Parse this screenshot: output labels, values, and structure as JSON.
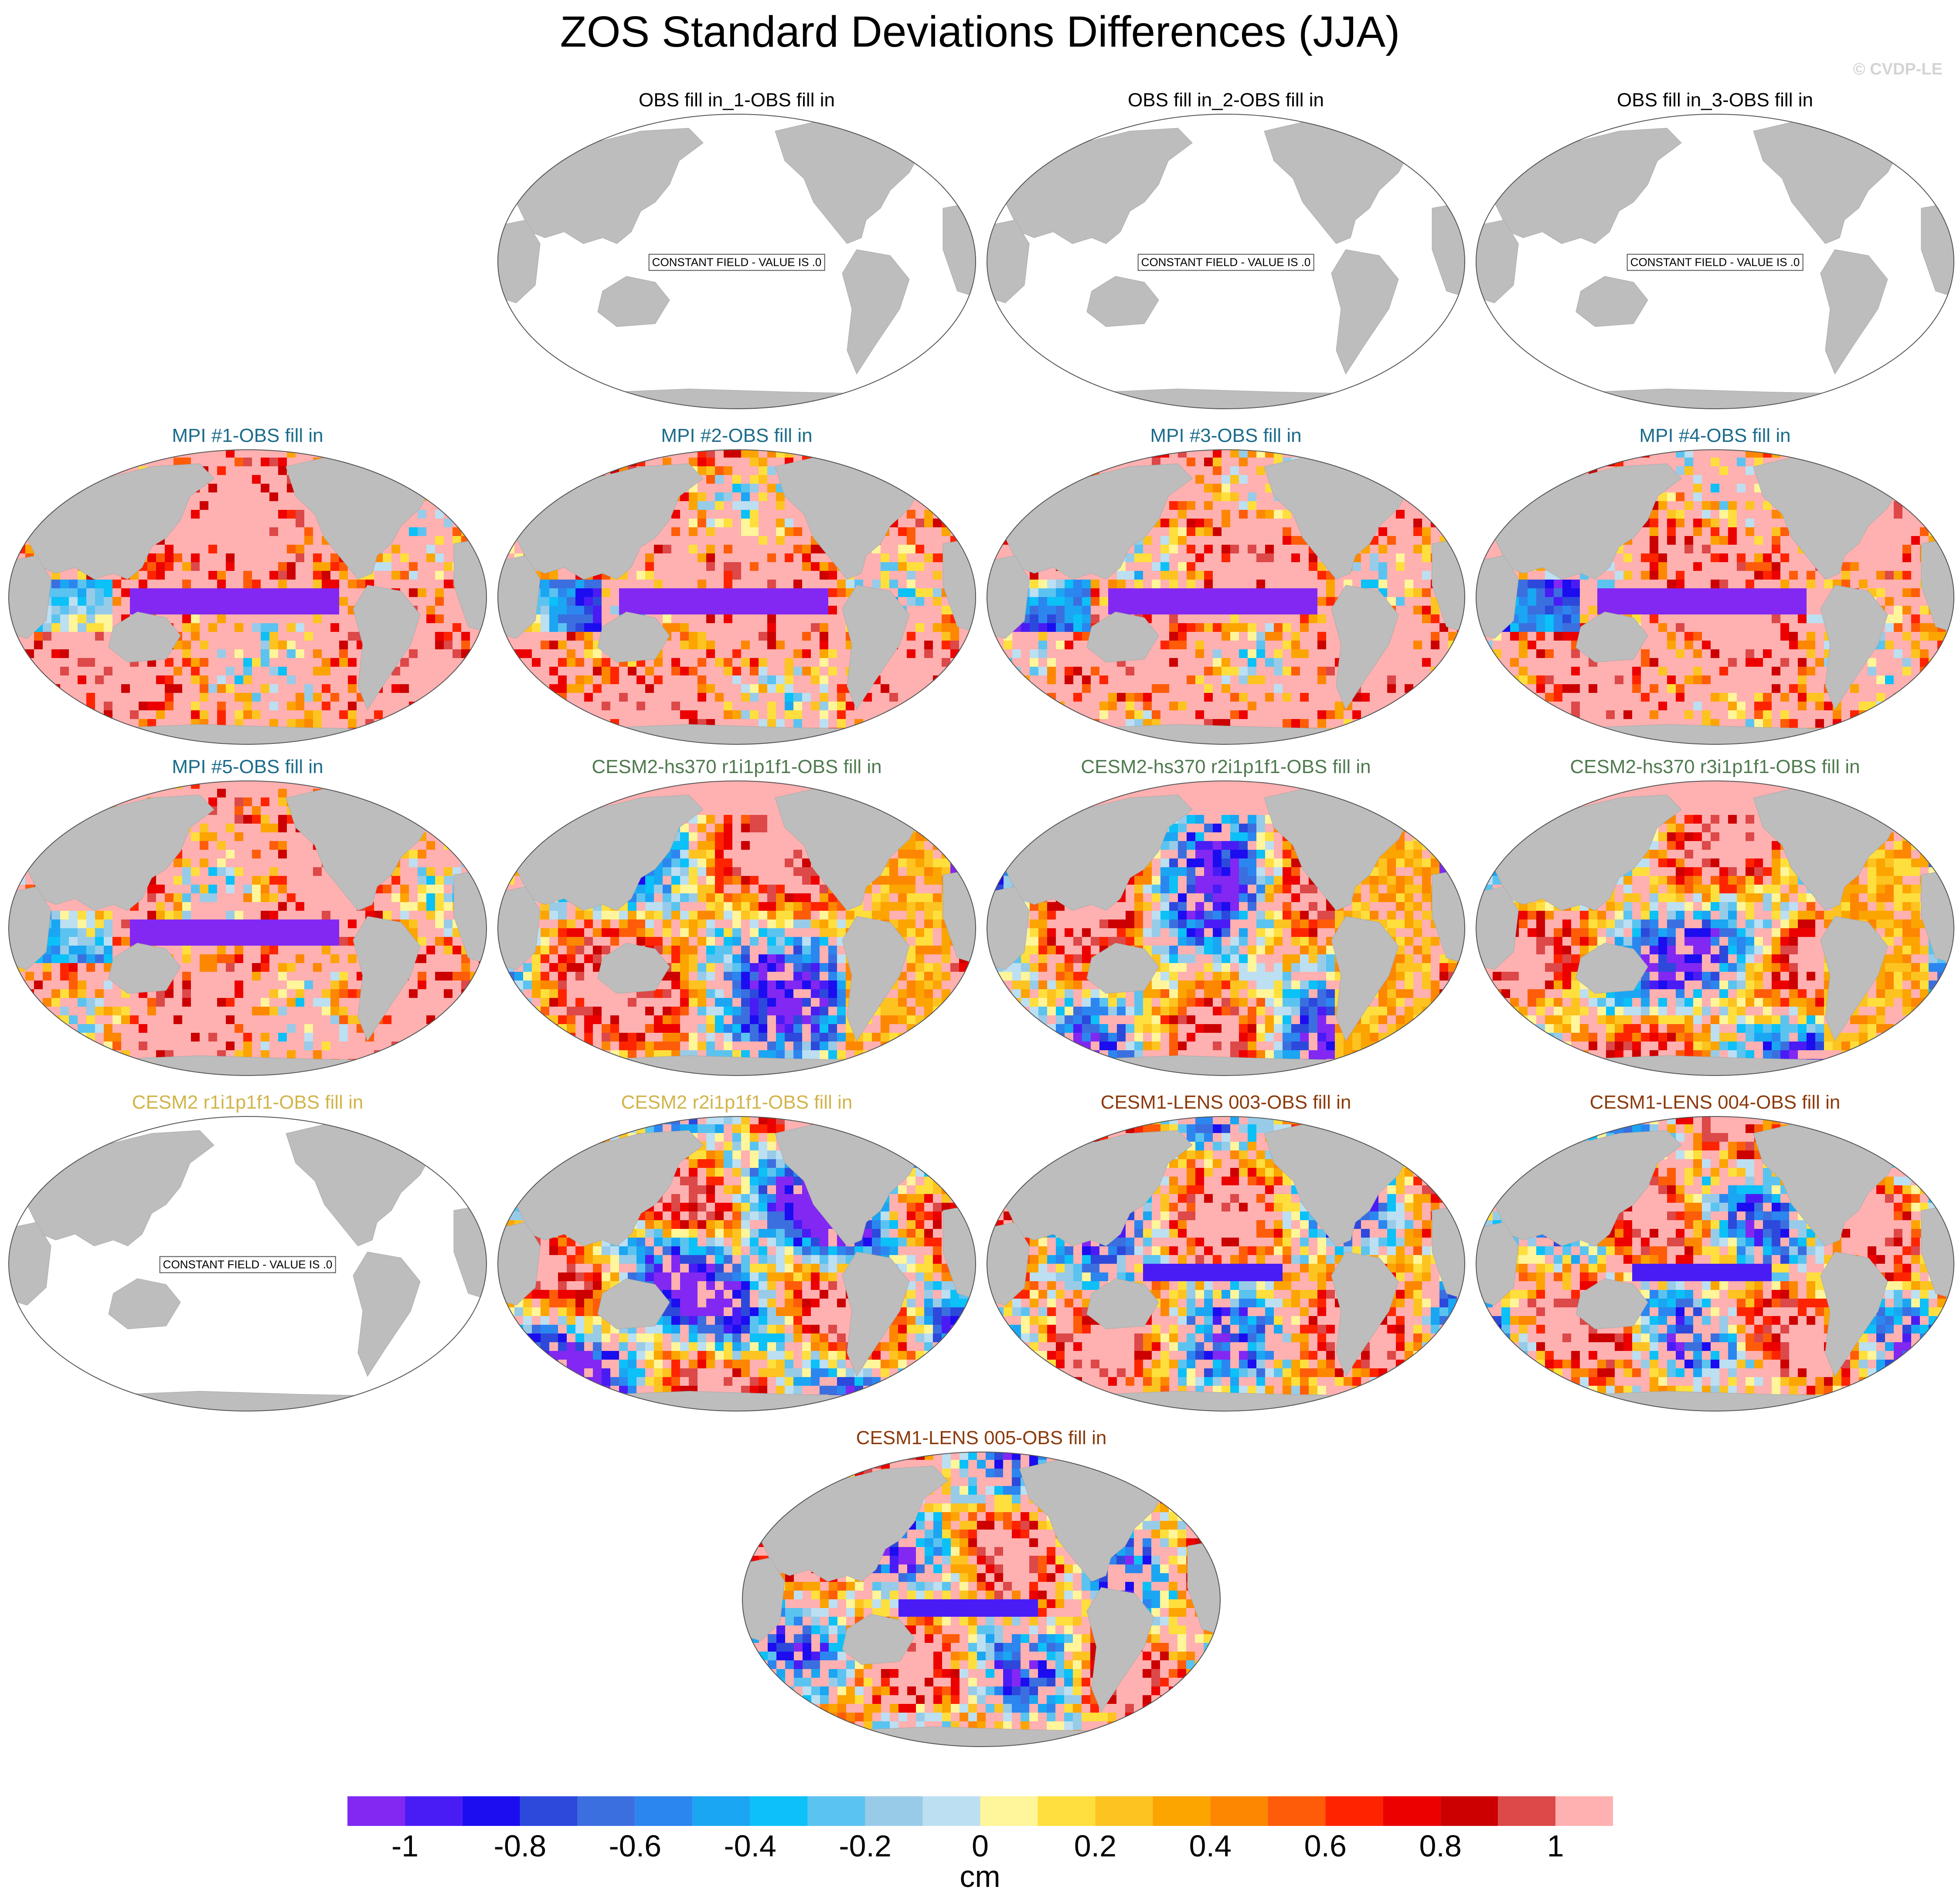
{
  "title": "ZOS Standard Deviations Differences (JJA)",
  "credit": "© CVDP-LE",
  "constant_field_note": "CONSTANT FIELD - VALUE IS .0",
  "colors": {
    "land": "#bdbdbd",
    "missing_ocean": "#ffffff",
    "title_obs": "#000000",
    "title_mpi": "#1b6b8a",
    "title_cesm2hs": "#4f7a4f",
    "title_cesm2": "#d2b44a",
    "title_lens": "#8b3a0b"
  },
  "chart_data": {
    "type": "heatmap",
    "projection": "Robinson, Pacific-centered",
    "colorbar": {
      "label": "cm",
      "tick_labels": [
        "-1",
        "-0.8",
        "-0.6",
        "-0.4",
        "-0.2",
        "0",
        "0.2",
        "0.4",
        "0.6",
        "0.8",
        "1"
      ],
      "ticks": [
        -1,
        -0.8,
        -0.6,
        -0.4,
        -0.2,
        0,
        0.2,
        0.4,
        0.6,
        0.8,
        1
      ],
      "boundaries": [
        -1.1,
        -1,
        -0.9,
        -0.8,
        -0.7,
        -0.6,
        -0.5,
        -0.4,
        -0.3,
        -0.2,
        -0.1,
        0,
        0.1,
        0.2,
        0.3,
        0.4,
        0.5,
        0.6,
        0.7,
        0.8,
        0.9,
        1,
        1.1
      ],
      "colors": [
        "#8228f2",
        "#4a1cf5",
        "#1b0df0",
        "#2c49dc",
        "#3b6fe0",
        "#2b86f0",
        "#1aa6f2",
        "#0cc0f8",
        "#5bc3f0",
        "#98cbe8",
        "#bcdff2",
        "#fff59a",
        "#ffdf3d",
        "#fdc321",
        "#fca400",
        "#fd8700",
        "#fe5c08",
        "#ff2400",
        "#ed0000",
        "#cc0000",
        "#dd4848",
        "#ffb0b0"
      ]
    },
    "panels": [
      {
        "title": "OBS fill in_1-OBS fill in",
        "group": "obs",
        "constant_field": true,
        "value": 0
      },
      {
        "title": "OBS fill in_2-OBS fill in",
        "group": "obs",
        "constant_field": true,
        "value": 0
      },
      {
        "title": "OBS fill in_3-OBS fill in",
        "group": "obs",
        "constant_field": true,
        "value": 0
      },
      {
        "title": "MPI #1-OBS fill in",
        "group": "mpi",
        "constant_field": false,
        "pattern": "mpi",
        "seed": 11
      },
      {
        "title": "MPI #2-OBS fill in",
        "group": "mpi",
        "constant_field": false,
        "pattern": "mpi",
        "seed": 12
      },
      {
        "title": "MPI #3-OBS fill in",
        "group": "mpi",
        "constant_field": false,
        "pattern": "mpi",
        "seed": 13
      },
      {
        "title": "MPI #4-OBS fill in",
        "group": "mpi",
        "constant_field": false,
        "pattern": "mpi",
        "seed": 14
      },
      {
        "title": "MPI #5-OBS fill in",
        "group": "mpi",
        "constant_field": false,
        "pattern": "mpi",
        "seed": 15
      },
      {
        "title": "CESM2-hs370 r1i1p1f1-OBS fill in",
        "group": "cesm2hs",
        "constant_field": false,
        "pattern": "cesm2",
        "seed": 21
      },
      {
        "title": "CESM2-hs370 r2i1p1f1-OBS fill in",
        "group": "cesm2hs",
        "constant_field": false,
        "pattern": "cesm2",
        "seed": 22
      },
      {
        "title": "CESM2-hs370 r3i1p1f1-OBS fill in",
        "group": "cesm2hs",
        "constant_field": false,
        "pattern": "cesm2",
        "seed": 23
      },
      {
        "title": "CESM2 r1i1p1f1-OBS fill in",
        "group": "cesm2",
        "constant_field": true,
        "value": 0
      },
      {
        "title": "CESM2 r2i1p1f1-OBS fill in",
        "group": "cesm2",
        "constant_field": false,
        "pattern": "cesm2b",
        "seed": 31
      },
      {
        "title": "CESM1-LENS 003-OBS fill in",
        "group": "lens",
        "constant_field": false,
        "pattern": "lens",
        "seed": 41
      },
      {
        "title": "CESM1-LENS 004-OBS fill in",
        "group": "lens",
        "constant_field": false,
        "pattern": "lens",
        "seed": 42
      },
      {
        "title": "CESM1-LENS 005-OBS fill in",
        "group": "lens",
        "constant_field": false,
        "pattern": "lens",
        "seed": 43
      }
    ]
  }
}
